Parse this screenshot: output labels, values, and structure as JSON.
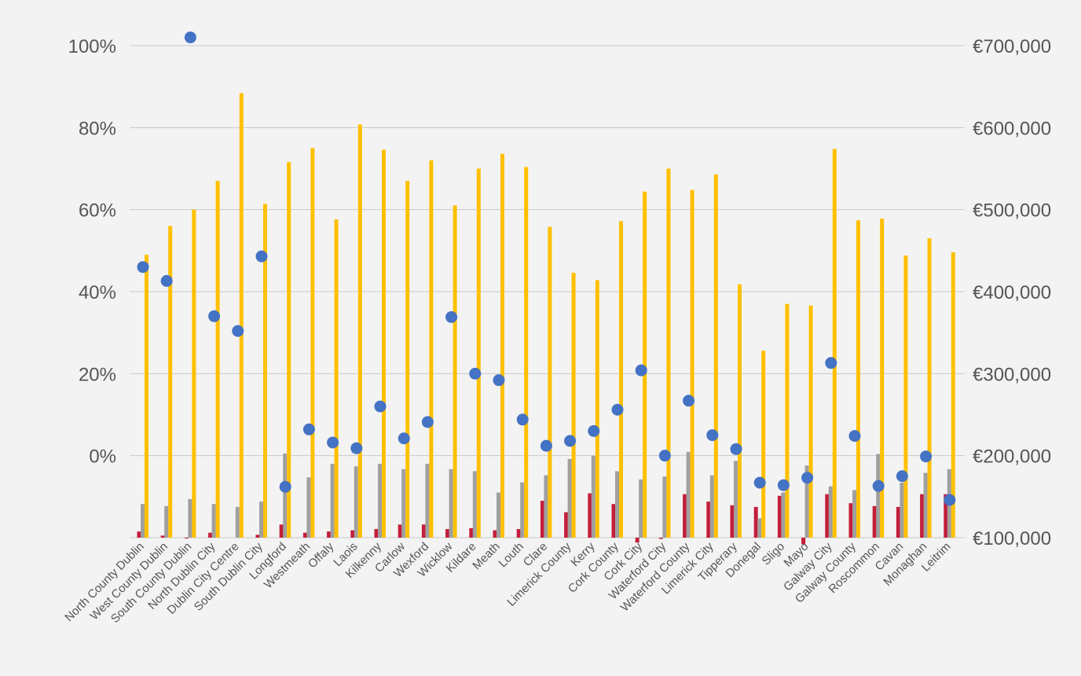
{
  "chart_data": {
    "type": "bar",
    "colors": {
      "background": "#f3f3f3",
      "grid": "#c8c8c8",
      "red_series": "#c41e3a",
      "gray_series": "#a0a0a0",
      "yellow_series": "#ffc000",
      "dot_series": "#4472c4",
      "text": "#555555"
    },
    "grid": true,
    "legend": "none",
    "left_axis": {
      "ticks": [
        "0%",
        "20%",
        "40%",
        "60%",
        "80%",
        "100%"
      ],
      "min": -20,
      "max": 100
    },
    "right_axis": {
      "ticks": [
        "€100,000",
        "€200,000",
        "€300,000",
        "€400,000",
        "€500,000",
        "€600,000",
        "€700,000"
      ],
      "min": 100000,
      "max": 700000
    },
    "categories": [
      "North County Dublin",
      "West County Dublin",
      "South County Dublin",
      "North Dublin City",
      "Dublin City Centre",
      "South Dublin City",
      "Longford",
      "Westmeath",
      "Offaly",
      "Laois",
      "Kilkenny",
      "Carlow",
      "Wexford",
      "Wicklow",
      "Kildare",
      "Meath",
      "Louth",
      "Clare",
      "Limerick County",
      "Kerry",
      "Cork County",
      "Cork City",
      "Waterford City",
      "Waterford County",
      "Limerick City",
      "Tipperary",
      "Donegal",
      "Sligo",
      "Mayo",
      "Galway City",
      "Galway County",
      "Roscommon",
      "Cavan",
      "Monaghan",
      "Leitrim"
    ],
    "series": [
      {
        "axis": "left",
        "mark": "bar",
        "color": "#c41e3a",
        "values": [
          -18.5,
          -19.5,
          -20.2,
          -18.8,
          -20,
          -19.3,
          -16.8,
          -18.8,
          -18.5,
          -18.2,
          -17.9,
          -16.8,
          -16.8,
          -17.9,
          -17.7,
          -18.2,
          -17.9,
          -11,
          -13.8,
          -9.2,
          -11.8,
          -21.2,
          -20.3,
          -9.4,
          -11.2,
          -12.1,
          -12.5,
          -9.8,
          -21.6,
          -9.4,
          -11.6,
          -12.3,
          -12.5,
          -9.4,
          -9.4
        ]
      },
      {
        "axis": "left",
        "mark": "bar",
        "color": "#a0a0a0",
        "values": [
          -11.8,
          -12.3,
          -10.6,
          -11.8,
          -12.5,
          -11.2,
          0.5,
          -5.3,
          -2,
          -2.6,
          -2,
          -3.3,
          -2,
          -3.3,
          -3.8,
          -9,
          -6.5,
          -4.8,
          -0.8,
          0,
          -3.8,
          -5.8,
          -5.1,
          0.9,
          -4.8,
          -1.3,
          -15.3,
          -9,
          -2.4,
          -7.5,
          -8.4,
          0.4,
          -6.6,
          -4.2,
          -3.3
        ]
      },
      {
        "axis": "right",
        "mark": "bar",
        "color": "#ffc000",
        "values": [
          445000,
          480000,
          500000,
          535000,
          642000,
          507000,
          558000,
          575000,
          488000,
          604000,
          573000,
          535000,
          560000,
          505000,
          550000,
          568000,
          552000,
          479000,
          423000,
          414000,
          486000,
          522000,
          550000,
          524000,
          543000,
          409000,
          328000,
          385000,
          383000,
          574000,
          487000,
          489000,
          444000,
          465000,
          448000
        ]
      },
      {
        "axis": "right",
        "mark": "dot",
        "color": "#4472c4",
        "values": [
          430000,
          413000,
          710000,
          370000,
          352000,
          443000,
          162000,
          232000,
          216000,
          209000,
          260000,
          221000,
          241000,
          369000,
          300000,
          292000,
          244000,
          212000,
          218000,
          230000,
          256000,
          304000,
          200000,
          267000,
          225000,
          208000,
          167000,
          164000,
          173000,
          313000,
          224000,
          163000,
          175000,
          199000,
          146000
        ]
      }
    ]
  }
}
